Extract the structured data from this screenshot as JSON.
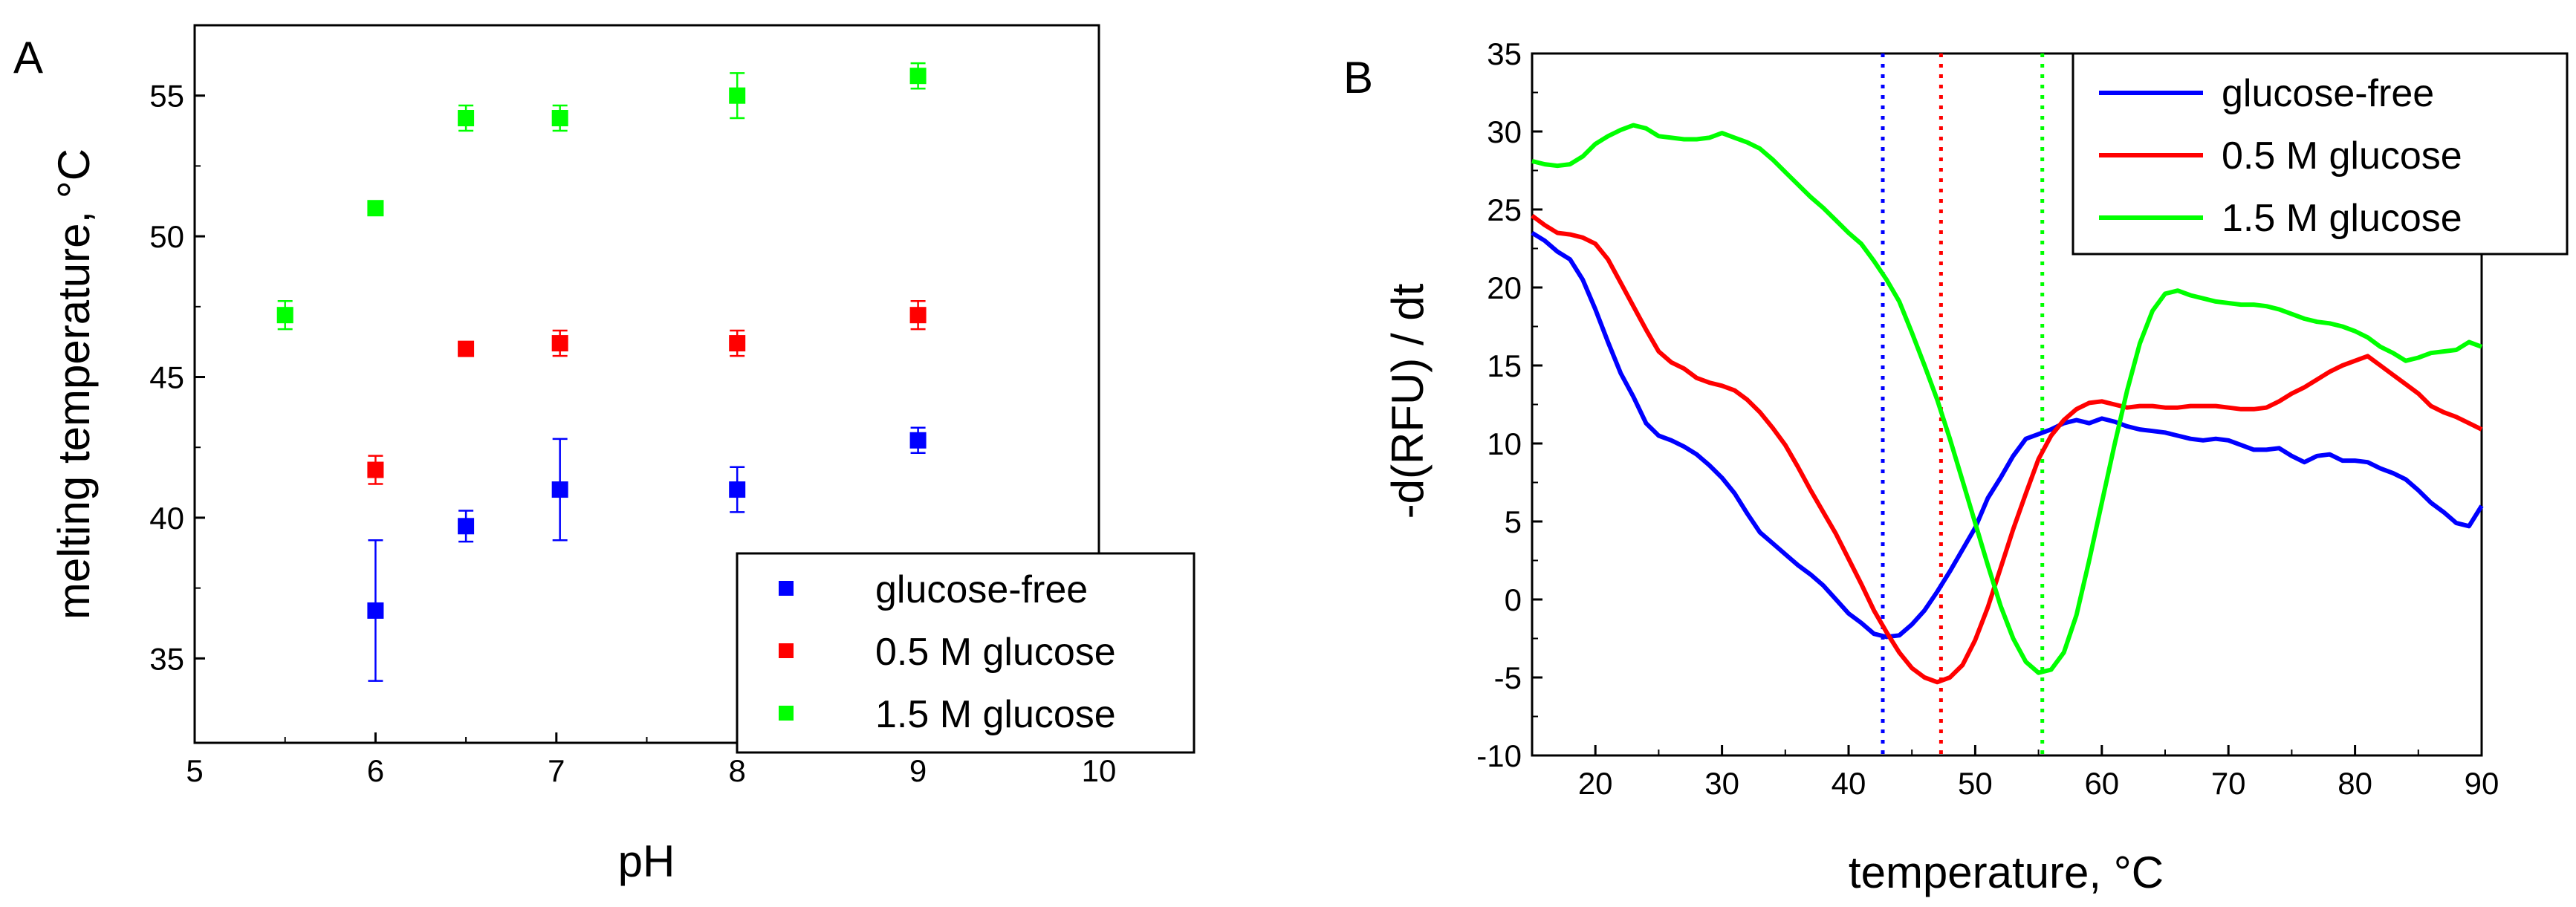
{
  "chart_data": [
    {
      "panel": "A",
      "type": "scatter",
      "xlabel": "pH",
      "ylabel": "melting temperature, °C",
      "xlim": [
        5,
        10
      ],
      "ylim": [
        32,
        57.5
      ],
      "xticks": [
        5,
        6,
        7,
        8,
        9,
        10
      ],
      "yticks": [
        35,
        40,
        45,
        50,
        55
      ],
      "legend_position": "bottom-right",
      "series": [
        {
          "name": "glucose-free",
          "color": "#0000ff",
          "points": [
            {
              "x": 6.0,
              "y": 36.7,
              "err": 2.5
            },
            {
              "x": 6.5,
              "y": 39.7,
              "err": 0.55
            },
            {
              "x": 7.02,
              "y": 41.0,
              "err": 1.8
            },
            {
              "x": 8.0,
              "y": 41.0,
              "err": 0.8
            },
            {
              "x": 9.0,
              "y": 42.75,
              "err": 0.45
            }
          ]
        },
        {
          "name": "0.5 M glucose",
          "color": "#ff0000",
          "points": [
            {
              "x": 6.0,
              "y": 41.7,
              "err": 0.5
            },
            {
              "x": 6.5,
              "y": 46.0,
              "err": 0.15
            },
            {
              "x": 7.02,
              "y": 46.2,
              "err": 0.45
            },
            {
              "x": 8.0,
              "y": 46.2,
              "err": 0.45
            },
            {
              "x": 9.0,
              "y": 47.2,
              "err": 0.5
            }
          ]
        },
        {
          "name": "1.5 M glucose",
          "color": "#00ff00",
          "points": [
            {
              "x": 5.5,
              "y": 47.2,
              "err": 0.5
            },
            {
              "x": 6.0,
              "y": 51.0,
              "err": 0.15
            },
            {
              "x": 6.5,
              "y": 54.2,
              "err": 0.45
            },
            {
              "x": 7.02,
              "y": 54.2,
              "err": 0.45
            },
            {
              "x": 8.0,
              "y": 55.0,
              "err": 0.8
            },
            {
              "x": 9.0,
              "y": 55.7,
              "err": 0.45
            }
          ]
        }
      ]
    },
    {
      "panel": "B",
      "type": "line",
      "xlabel": "temperature, °C",
      "ylabel": "-d(RFU) / dt",
      "xlim": [
        15,
        90
      ],
      "ylim": [
        -10,
        35
      ],
      "xticks": [
        20,
        30,
        40,
        50,
        60,
        70,
        80,
        90
      ],
      "yticks": [
        -10,
        -5,
        0,
        5,
        10,
        15,
        20,
        25,
        30,
        35
      ],
      "legend_position": "top-right",
      "vlines": [
        {
          "x": 42.7,
          "color": "#0000ff"
        },
        {
          "x": 47.3,
          "color": "#ff0000"
        },
        {
          "x": 55.3,
          "color": "#00ff00"
        }
      ],
      "series": [
        {
          "name": "glucose-free",
          "color": "#0000ff",
          "x": [
            15,
            16,
            17,
            18,
            19,
            20,
            21,
            22,
            23,
            24,
            25,
            26,
            27,
            28,
            29,
            30,
            31,
            32,
            33,
            34,
            35,
            36,
            37,
            38,
            39,
            40,
            41,
            42,
            43,
            44,
            45,
            46,
            47,
            48,
            49,
            50,
            51,
            52,
            53,
            54,
            55,
            56,
            57,
            58,
            59,
            60,
            61,
            62,
            63,
            64,
            65,
            66,
            67,
            68,
            69,
            70,
            71,
            72,
            73,
            74,
            75,
            76,
            77,
            78,
            79,
            80,
            81,
            82,
            83,
            84,
            85,
            86,
            87,
            88,
            89,
            90
          ],
          "y": [
            23.5,
            23,
            22.3,
            21.8,
            20.5,
            18.6,
            16.5,
            14.5,
            13,
            11.3,
            10.5,
            10.2,
            9.8,
            9.3,
            8.6,
            7.8,
            6.8,
            5.5,
            4.3,
            3.6,
            2.9,
            2.2,
            1.6,
            0.9,
            0,
            -0.9,
            -1.5,
            -2.2,
            -2.4,
            -2.3,
            -1.6,
            -0.7,
            0.5,
            1.8,
            3.2,
            4.6,
            6.5,
            7.8,
            9.2,
            10.3,
            10.6,
            10.9,
            11.3,
            11.5,
            11.3,
            11.6,
            11.4,
            11.1,
            10.9,
            10.8,
            10.7,
            10.5,
            10.3,
            10.2,
            10.3,
            10.2,
            9.9,
            9.6,
            9.6,
            9.7,
            9.2,
            8.8,
            9.2,
            9.3,
            8.9,
            8.9,
            8.8,
            8.4,
            8.1,
            7.7,
            7.0,
            6.2,
            5.6,
            4.9,
            4.7,
            6.0
          ]
        },
        {
          "name": "0.5 M glucose",
          "color": "#ff0000",
          "x": [
            15,
            16,
            17,
            18,
            19,
            20,
            21,
            22,
            23,
            24,
            25,
            26,
            27,
            28,
            29,
            30,
            31,
            32,
            33,
            34,
            35,
            36,
            37,
            38,
            39,
            40,
            41,
            42,
            43,
            44,
            45,
            46,
            47,
            48,
            49,
            50,
            51,
            52,
            53,
            54,
            55,
            56,
            57,
            58,
            59,
            60,
            61,
            62,
            63,
            64,
            65,
            66,
            67,
            68,
            69,
            70,
            71,
            72,
            73,
            74,
            75,
            76,
            77,
            78,
            79,
            80,
            81,
            82,
            83,
            84,
            85,
            86,
            87,
            88,
            89,
            90
          ],
          "y": [
            24.6,
            24,
            23.5,
            23.4,
            23.2,
            22.8,
            21.8,
            20.3,
            18.8,
            17.3,
            15.9,
            15.2,
            14.8,
            14.2,
            13.9,
            13.7,
            13.4,
            12.8,
            12.0,
            11.0,
            9.9,
            8.5,
            7.0,
            5.6,
            4.2,
            2.6,
            1.0,
            -0.7,
            -2.1,
            -3.4,
            -4.4,
            -5.0,
            -5.3,
            -5.0,
            -4.2,
            -2.6,
            -0.5,
            2.0,
            4.5,
            6.8,
            9.0,
            10.5,
            11.5,
            12.2,
            12.6,
            12.7,
            12.5,
            12.3,
            12.4,
            12.4,
            12.3,
            12.3,
            12.4,
            12.4,
            12.4,
            12.3,
            12.2,
            12.2,
            12.3,
            12.7,
            13.2,
            13.6,
            14.1,
            14.6,
            15.0,
            15.3,
            15.6,
            15.0,
            14.4,
            13.8,
            13.2,
            12.4,
            12.0,
            11.7,
            11.3,
            10.9
          ]
        },
        {
          "name": "1.5 M glucose",
          "color": "#00ff00",
          "x": [
            15,
            16,
            17,
            18,
            19,
            20,
            21,
            22,
            23,
            24,
            25,
            26,
            27,
            28,
            29,
            30,
            31,
            32,
            33,
            34,
            35,
            36,
            37,
            38,
            39,
            40,
            41,
            42,
            43,
            44,
            45,
            46,
            47,
            48,
            49,
            50,
            51,
            52,
            53,
            54,
            55,
            56,
            57,
            58,
            59,
            60,
            61,
            62,
            63,
            64,
            65,
            66,
            67,
            68,
            69,
            70,
            71,
            72,
            73,
            74,
            75,
            76,
            77,
            78,
            79,
            80,
            81,
            82,
            83,
            84,
            85,
            86,
            87,
            88,
            89,
            90
          ],
          "y": [
            28.1,
            27.9,
            27.8,
            27.9,
            28.4,
            29.2,
            29.7,
            30.1,
            30.4,
            30.2,
            29.7,
            29.6,
            29.5,
            29.5,
            29.6,
            29.9,
            29.6,
            29.3,
            28.9,
            28.2,
            27.4,
            26.6,
            25.8,
            25.1,
            24.3,
            23.5,
            22.8,
            21.7,
            20.5,
            19.1,
            17.1,
            15.0,
            12.8,
            10.3,
            7.6,
            4.9,
            2.2,
            -0.4,
            -2.5,
            -4.0,
            -4.7,
            -4.5,
            -3.4,
            -1.0,
            2.5,
            6.2,
            9.9,
            13.4,
            16.4,
            18.5,
            19.6,
            19.8,
            19.5,
            19.3,
            19.1,
            19.0,
            18.9,
            18.9,
            18.8,
            18.6,
            18.3,
            18.0,
            17.8,
            17.7,
            17.5,
            17.2,
            16.8,
            16.2,
            15.8,
            15.3,
            15.5,
            15.8,
            15.9,
            16.0,
            16.5,
            16.2
          ]
        }
      ]
    }
  ]
}
